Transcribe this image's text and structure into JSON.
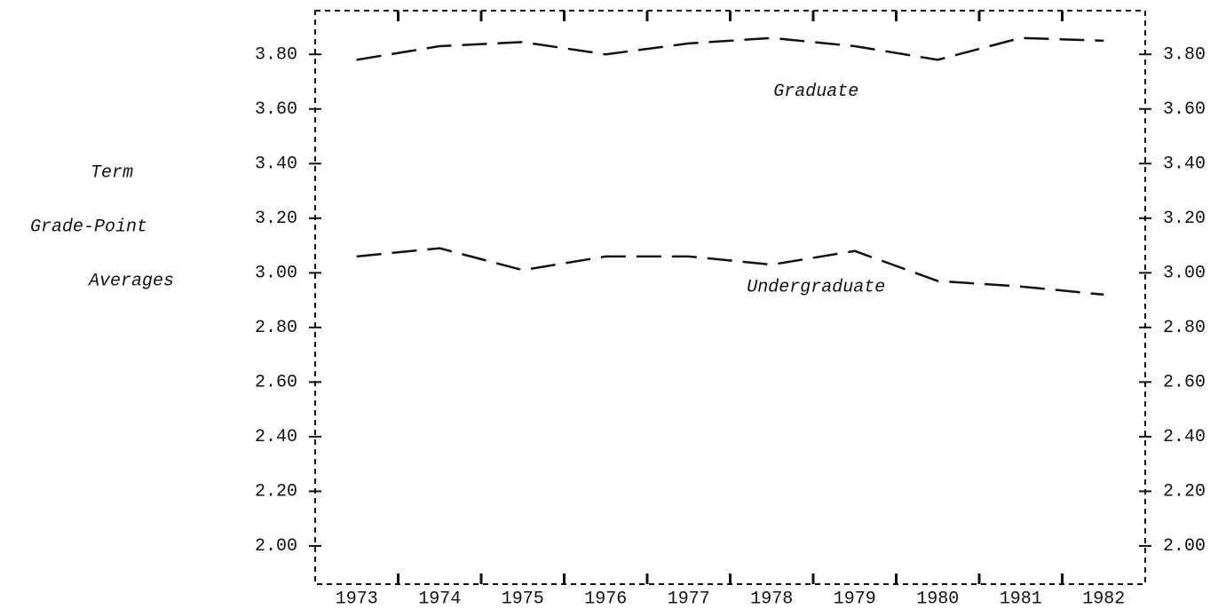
{
  "chart_data": {
    "type": "line",
    "ylabel": [
      "Term",
      "Grade-Point",
      "Averages"
    ],
    "categories": [
      "1973",
      "1974",
      "1975",
      "1976",
      "1977",
      "1978",
      "1979",
      "1980",
      "1981",
      "1982"
    ],
    "series": [
      {
        "name": "Graduate",
        "color": "#111111",
        "values": [
          3.78,
          3.83,
          3.845,
          3.8,
          3.84,
          3.86,
          3.83,
          3.78,
          3.86,
          3.85
        ]
      },
      {
        "name": "Undergraduate",
        "color": "#111111",
        "values": [
          3.06,
          3.09,
          3.01,
          3.06,
          3.06,
          3.03,
          3.08,
          2.97,
          2.95,
          2.92
        ]
      }
    ],
    "ylim": [
      1.86,
      3.96
    ],
    "yticks": [
      {
        "value": 2.0,
        "label": "2.00"
      },
      {
        "value": 2.2,
        "label": "2.20"
      },
      {
        "value": 2.4,
        "label": "2.40"
      },
      {
        "value": 2.6,
        "label": "2.60"
      },
      {
        "value": 2.8,
        "label": "2.80"
      },
      {
        "value": 3.0,
        "label": "3.00"
      },
      {
        "value": 3.2,
        "label": "3.20"
      },
      {
        "value": 3.4,
        "label": "3.40"
      },
      {
        "value": 3.6,
        "label": "3.60"
      },
      {
        "value": 3.8,
        "label": "3.80"
      }
    ],
    "grid": false
  }
}
